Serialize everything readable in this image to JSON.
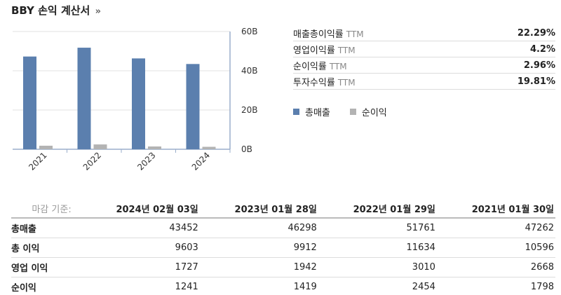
{
  "title": "BBY 손익 계산서",
  "title_arrow": "»",
  "ratios": [
    {
      "label": "매출총이익률",
      "unit": "TTM",
      "value": "22.29%"
    },
    {
      "label": "영업이익률",
      "unit": "TTM",
      "value": "4.2%"
    },
    {
      "label": "순이익률",
      "unit": "TTM",
      "value": "2.96%"
    },
    {
      "label": "투자수익률",
      "unit": "TTM",
      "value": "19.81%"
    }
  ],
  "legend": [
    {
      "name": "총매출",
      "color": "#5b7fae"
    },
    {
      "name": "순이익",
      "color": "#b3b3b3"
    }
  ],
  "chart_data": {
    "type": "bar",
    "categories": [
      "2021",
      "2022",
      "2023",
      "2024"
    ],
    "series": [
      {
        "name": "총매출",
        "color": "#5b7fae",
        "values": [
          47.262,
          51.761,
          46.298,
          43.452
        ]
      },
      {
        "name": "순이익",
        "color": "#b3b3b3",
        "values": [
          1.798,
          2.454,
          1.419,
          1.241
        ]
      }
    ],
    "yticks": [
      0,
      20,
      40,
      60
    ],
    "ytick_labels": [
      "0B",
      "20B",
      "40B",
      "60B"
    ],
    "ylim": [
      0,
      60
    ],
    "y_axis_side": "right",
    "grid": true
  },
  "table": {
    "asof_label": "마감 기준:",
    "columns": [
      "2024년 02월 03일",
      "2023년 01월 28일",
      "2022년 01월 29일",
      "2021년 01월 30일"
    ],
    "rows": [
      {
        "label": "총매출",
        "values": [
          "43452",
          "46298",
          "51761",
          "47262"
        ]
      },
      {
        "label": "총 이익",
        "values": [
          "9603",
          "9912",
          "11634",
          "10596"
        ]
      },
      {
        "label": "영업 이익",
        "values": [
          "1727",
          "1942",
          "3010",
          "2668"
        ]
      },
      {
        "label": "순이익",
        "values": [
          "1241",
          "1419",
          "2454",
          "1798"
        ]
      }
    ]
  }
}
